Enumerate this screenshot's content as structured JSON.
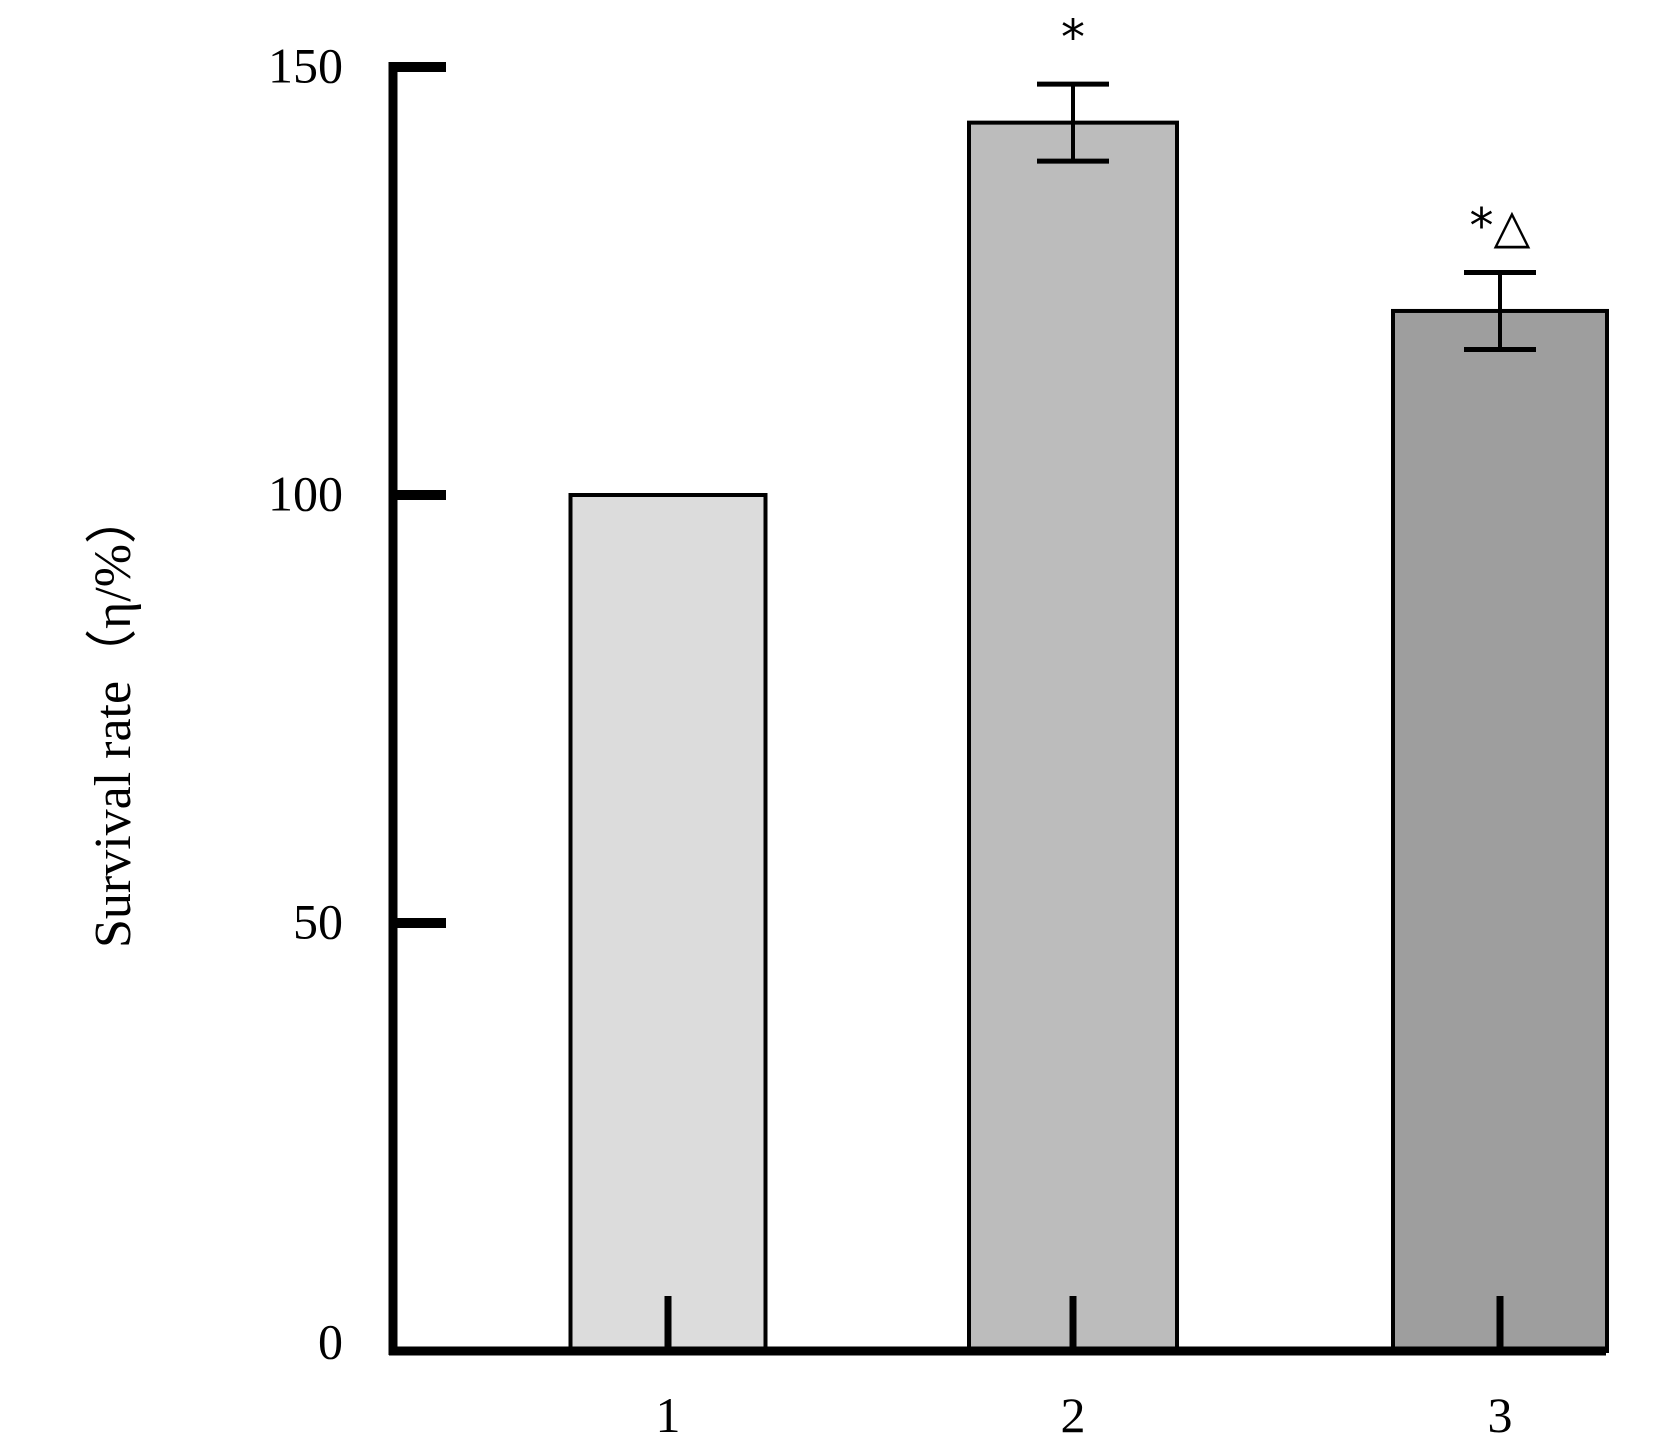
{
  "chart_data": {
    "type": "bar",
    "categories": [
      "1",
      "2",
      "3"
    ],
    "values": [
      100,
      143.5,
      121.5
    ],
    "errors": [
      null,
      4.5,
      4.5
    ],
    "significance": [
      "",
      "*",
      "*△"
    ],
    "bar_colors": [
      "#dcdcdc",
      "#bcbcbc",
      "#9e9e9e"
    ],
    "ylabel": "Survival rate（η/%）",
    "yticks": [
      "0",
      "50",
      "100",
      "150"
    ],
    "ylim": [
      0,
      150
    ],
    "grid": false,
    "legend": "none"
  }
}
